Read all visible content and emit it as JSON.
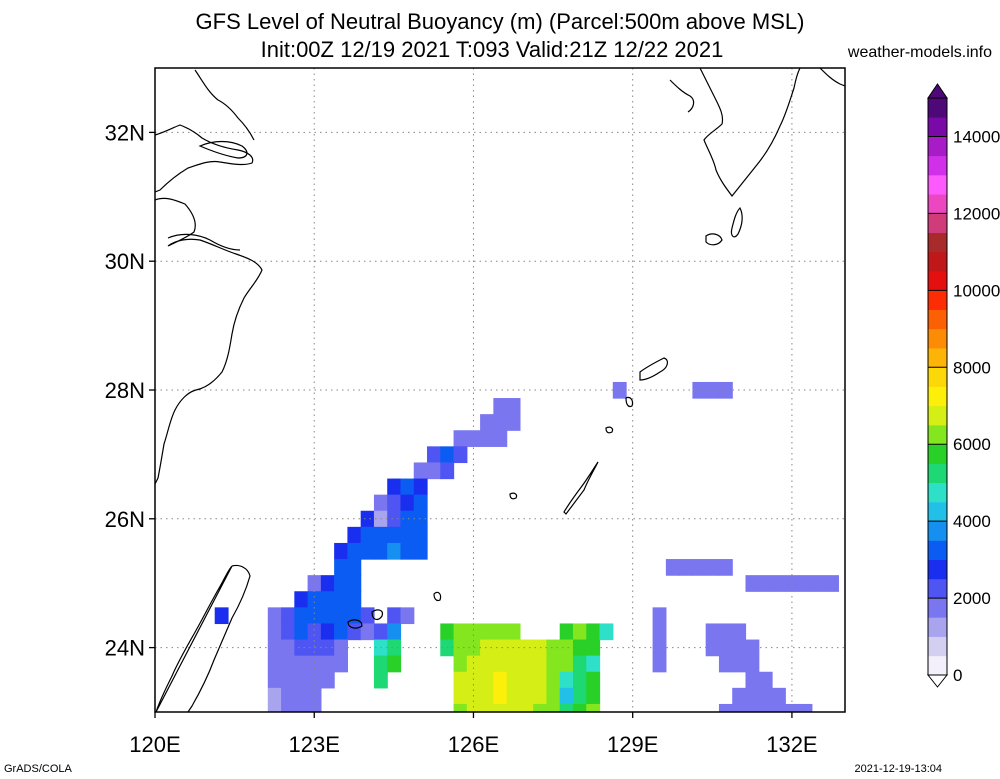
{
  "title": {
    "line1": "GFS Level of Neutral Buoyancy (m) (Parcel:500m above MSL)",
    "line2": "Init:00Z 12/19 2021 T:093 Valid:21Z 12/22 2021"
  },
  "source": "weather-models.info",
  "footer": {
    "left": "GrADS/COLA",
    "right": "2021-12-19-13:04"
  },
  "map": {
    "lon_range": [
      120,
      133
    ],
    "lat_range": [
      23,
      33
    ],
    "lon_ticks": [
      {
        "value": 120,
        "label": "120E"
      },
      {
        "value": 123,
        "label": "123E"
      },
      {
        "value": 126,
        "label": "126E"
      },
      {
        "value": 129,
        "label": "129E"
      },
      {
        "value": 132,
        "label": "132E"
      }
    ],
    "lat_ticks": [
      {
        "value": 24,
        "label": "24N"
      },
      {
        "value": 26,
        "label": "26N"
      },
      {
        "value": 28,
        "label": "28N"
      },
      {
        "value": 30,
        "label": "30N"
      },
      {
        "value": 32,
        "label": "32N"
      }
    ],
    "gridlines": true
  },
  "colorbar": {
    "min": 0,
    "max": 15000,
    "ticks": [
      {
        "value": 0,
        "label": "0"
      },
      {
        "value": 2000,
        "label": "2000"
      },
      {
        "value": 4000,
        "label": "4000"
      },
      {
        "value": 6000,
        "label": "6000"
      },
      {
        "value": 8000,
        "label": "8000"
      },
      {
        "value": 10000,
        "label": "10000"
      },
      {
        "value": 12000,
        "label": "12000"
      },
      {
        "value": 14000,
        "label": "14000"
      }
    ],
    "colors": [
      "#f4f0fb",
      "#d2cff1",
      "#a8a4ee",
      "#7a76f0",
      "#4f55f2",
      "#1a2ef0",
      "#0b5cf2",
      "#1690f0",
      "#22c0e8",
      "#2ee0c8",
      "#1ed874",
      "#29d028",
      "#84e61e",
      "#d4ee16",
      "#fcf00a",
      "#fcd808",
      "#fcb406",
      "#fc8c06",
      "#fc6004",
      "#fc2c04",
      "#e41010",
      "#c01818",
      "#a82a2a",
      "#d03c7a",
      "#ec46c0",
      "#fc5afc",
      "#d030e8",
      "#a81cc8",
      "#7a0aa8",
      "#4e0878"
    ]
  },
  "chart_data": {
    "type": "heatmap",
    "title": "GFS Level of Neutral Buoyancy (m) (Parcel:500m above MSL)",
    "xlabel": "",
    "ylabel": "",
    "xlim": [
      120,
      133
    ],
    "ylim": [
      23,
      33
    ],
    "units": "m",
    "cells": [
      [
        126.5,
        27.75,
        1700
      ],
      [
        126.75,
        27.75,
        1800
      ],
      [
        126.25,
        27.5,
        1600
      ],
      [
        126.5,
        27.5,
        1700
      ],
      [
        126.75,
        27.5,
        1800
      ],
      [
        125.75,
        27.25,
        1900
      ],
      [
        126.0,
        27.25,
        1800
      ],
      [
        126.25,
        27.25,
        1700
      ],
      [
        126.5,
        27.25,
        1600
      ],
      [
        125.25,
        27.0,
        2300
      ],
      [
        125.5,
        27.0,
        3000
      ],
      [
        125.75,
        27.0,
        2000
      ],
      [
        125.0,
        26.75,
        1800
      ],
      [
        125.25,
        26.75,
        1900
      ],
      [
        125.5,
        26.75,
        2200
      ],
      [
        124.5,
        26.5,
        2500
      ],
      [
        124.75,
        26.5,
        3200
      ],
      [
        125.0,
        26.5,
        2600
      ],
      [
        124.25,
        26.25,
        1800
      ],
      [
        124.5,
        26.25,
        2200
      ],
      [
        124.75,
        26.25,
        2900
      ],
      [
        125.0,
        26.25,
        3000
      ],
      [
        124.0,
        26.0,
        2500
      ],
      [
        124.25,
        26.0,
        1400
      ],
      [
        124.5,
        26.0,
        2100
      ],
      [
        124.75,
        26.0,
        3100
      ],
      [
        125.0,
        26.0,
        3300
      ],
      [
        123.75,
        25.75,
        2700
      ],
      [
        124.0,
        25.75,
        3000
      ],
      [
        124.25,
        25.75,
        3100
      ],
      [
        124.5,
        25.75,
        3300
      ],
      [
        124.75,
        25.75,
        3300
      ],
      [
        125.0,
        25.75,
        3400
      ],
      [
        123.5,
        25.5,
        2700
      ],
      [
        123.75,
        25.5,
        3000
      ],
      [
        124.0,
        25.5,
        3200
      ],
      [
        124.25,
        25.5,
        3400
      ],
      [
        124.5,
        25.5,
        3500
      ],
      [
        124.75,
        25.5,
        3400
      ],
      [
        125.0,
        25.5,
        3400
      ],
      [
        123.5,
        25.25,
        3000
      ],
      [
        123.75,
        25.25,
        3300
      ],
      [
        123.0,
        25.0,
        1500
      ],
      [
        123.25,
        25.0,
        2600
      ],
      [
        123.5,
        25.0,
        3100
      ],
      [
        123.75,
        25.0,
        3400
      ],
      [
        122.75,
        24.75,
        2800
      ],
      [
        123.0,
        24.75,
        3000
      ],
      [
        123.25,
        24.75,
        3200
      ],
      [
        123.5,
        24.75,
        3400
      ],
      [
        123.75,
        24.75,
        3400
      ],
      [
        122.25,
        24.5,
        1800
      ],
      [
        122.5,
        24.5,
        2400
      ],
      [
        122.75,
        24.5,
        3300
      ],
      [
        123.0,
        24.5,
        3100
      ],
      [
        123.25,
        24.5,
        3000
      ],
      [
        123.5,
        24.5,
        3300
      ],
      [
        123.75,
        24.5,
        3200
      ],
      [
        124.0,
        24.5,
        2300
      ],
      [
        124.5,
        24.5,
        2100
      ],
      [
        124.75,
        24.5,
        1800
      ],
      [
        121.25,
        24.5,
        2700
      ],
      [
        122.25,
        24.25,
        1700
      ],
      [
        122.5,
        24.25,
        2000
      ],
      [
        122.75,
        24.25,
        3000
      ],
      [
        123.0,
        24.25,
        2300
      ],
      [
        123.25,
        24.25,
        2500
      ],
      [
        123.5,
        24.25,
        3100
      ],
      [
        123.75,
        24.25,
        2400
      ],
      [
        124.0,
        24.25,
        1900
      ],
      [
        124.25,
        24.25,
        2000
      ],
      [
        124.5,
        24.25,
        3800
      ],
      [
        125.5,
        24.25,
        5600
      ],
      [
        125.75,
        24.25,
        6100
      ],
      [
        126.0,
        24.25,
        6300
      ],
      [
        126.25,
        24.25,
        6400
      ],
      [
        126.5,
        24.25,
        6400
      ],
      [
        126.75,
        24.25,
        6300
      ],
      [
        127.75,
        24.25,
        5700
      ],
      [
        128.0,
        24.25,
        6000
      ],
      [
        128.25,
        24.25,
        5800
      ],
      [
        128.5,
        24.25,
        4700
      ],
      [
        122.25,
        24.0,
        1600
      ],
      [
        122.5,
        24.0,
        1900
      ],
      [
        122.75,
        24.0,
        2100
      ],
      [
        123.0,
        24.0,
        2000
      ],
      [
        123.25,
        24.0,
        2000
      ],
      [
        123.5,
        24.0,
        1700
      ],
      [
        124.25,
        24.0,
        4500
      ],
      [
        124.5,
        24.0,
        5000
      ],
      [
        125.5,
        24.0,
        5300
      ],
      [
        125.75,
        24.0,
        6200
      ],
      [
        126.0,
        24.0,
        6400
      ],
      [
        126.25,
        24.0,
        6500
      ],
      [
        126.5,
        24.0,
        6600
      ],
      [
        126.75,
        24.0,
        6600
      ],
      [
        127.0,
        24.0,
        6600
      ],
      [
        127.25,
        24.0,
        6500
      ],
      [
        127.5,
        24.0,
        6400
      ],
      [
        127.75,
        24.0,
        6200
      ],
      [
        128.0,
        24.0,
        5900
      ],
      [
        128.25,
        24.0,
        5800
      ],
      [
        122.25,
        23.75,
        1500
      ],
      [
        122.5,
        23.75,
        1800
      ],
      [
        122.75,
        23.75,
        1900
      ],
      [
        123.0,
        23.75,
        1900
      ],
      [
        123.25,
        23.75,
        1700
      ],
      [
        123.5,
        23.75,
        1500
      ],
      [
        124.25,
        23.75,
        5100
      ],
      [
        124.5,
        23.75,
        5700
      ],
      [
        125.75,
        23.75,
        6400
      ],
      [
        126.0,
        23.75,
        6600
      ],
      [
        126.25,
        23.75,
        6700
      ],
      [
        126.5,
        23.75,
        6800
      ],
      [
        126.75,
        23.75,
        6800
      ],
      [
        127.0,
        23.75,
        6700
      ],
      [
        127.25,
        23.75,
        6600
      ],
      [
        127.5,
        23.75,
        6400
      ],
      [
        127.75,
        23.75,
        6000
      ],
      [
        128.0,
        23.75,
        5000
      ],
      [
        128.25,
        23.75,
        4900
      ],
      [
        122.25,
        23.5,
        1500
      ],
      [
        122.5,
        23.5,
        1700
      ],
      [
        122.75,
        23.5,
        1800
      ],
      [
        123.0,
        23.5,
        1800
      ],
      [
        123.25,
        23.5,
        1600
      ],
      [
        124.25,
        23.5,
        5400
      ],
      [
        125.75,
        23.5,
        6500
      ],
      [
        126.0,
        23.5,
        6700
      ],
      [
        126.25,
        23.5,
        6900
      ],
      [
        126.5,
        23.5,
        7000
      ],
      [
        126.75,
        23.5,
        6900
      ],
      [
        127.0,
        23.5,
        6800
      ],
      [
        127.25,
        23.5,
        6700
      ],
      [
        127.5,
        23.5,
        6300
      ],
      [
        127.75,
        23.5,
        4500
      ],
      [
        128.0,
        23.5,
        5100
      ],
      [
        128.25,
        23.5,
        5500
      ],
      [
        122.25,
        23.25,
        1400
      ],
      [
        122.5,
        23.25,
        1600
      ],
      [
        122.75,
        23.25,
        1700
      ],
      [
        123.0,
        23.25,
        1600
      ],
      [
        125.75,
        23.25,
        6500
      ],
      [
        126.0,
        23.25,
        6700
      ],
      [
        126.25,
        23.25,
        6900
      ],
      [
        126.5,
        23.25,
        7000
      ],
      [
        126.75,
        23.25,
        6900
      ],
      [
        127.0,
        23.25,
        6800
      ],
      [
        127.25,
        23.25,
        6600
      ],
      [
        127.5,
        23.25,
        6000
      ],
      [
        127.75,
        23.25,
        4200
      ],
      [
        128.0,
        23.25,
        5400
      ],
      [
        128.25,
        23.25,
        5900
      ],
      [
        122.25,
        23.0,
        1400
      ],
      [
        122.5,
        23.0,
        1500
      ],
      [
        122.75,
        23.0,
        1600
      ],
      [
        123.0,
        23.0,
        1600
      ],
      [
        125.75,
        23.0,
        6400
      ],
      [
        126.0,
        23.0,
        6600
      ],
      [
        126.25,
        23.0,
        6800
      ],
      [
        126.5,
        23.0,
        6800
      ],
      [
        126.75,
        23.0,
        6700
      ],
      [
        127.0,
        23.0,
        6600
      ],
      [
        127.25,
        23.0,
        6400
      ],
      [
        127.5,
        23.0,
        6000
      ],
      [
        127.75,
        23.0,
        5300
      ],
      [
        128.0,
        23.0,
        5900
      ],
      [
        128.25,
        23.0,
        6200
      ],
      [
        128.75,
        28.0,
        1700
      ],
      [
        130.25,
        28.0,
        1800
      ],
      [
        130.5,
        28.0,
        1600
      ],
      [
        130.75,
        28.0,
        1700
      ],
      [
        129.75,
        25.25,
        1700
      ],
      [
        130.0,
        25.25,
        1600
      ],
      [
        130.25,
        25.25,
        1700
      ],
      [
        130.5,
        25.25,
        1800
      ],
      [
        130.75,
        25.25,
        1700
      ],
      [
        131.25,
        25.0,
        1900
      ],
      [
        131.5,
        25.0,
        1900
      ],
      [
        131.75,
        25.0,
        1800
      ],
      [
        132.0,
        25.0,
        1800
      ],
      [
        132.25,
        25.0,
        1700
      ],
      [
        132.5,
        25.0,
        1900
      ],
      [
        132.75,
        25.0,
        1900
      ],
      [
        129.5,
        24.5,
        1700
      ],
      [
        129.5,
        24.25,
        1700
      ],
      [
        129.5,
        24.0,
        1600
      ],
      [
        129.5,
        23.75,
        1600
      ],
      [
        130.5,
        24.25,
        1600
      ],
      [
        130.75,
        24.25,
        1800
      ],
      [
        131.0,
        24.25,
        1700
      ],
      [
        130.5,
        24.0,
        1600
      ],
      [
        130.75,
        24.0,
        1700
      ],
      [
        131.0,
        24.0,
        1700
      ],
      [
        131.25,
        24.0,
        1700
      ],
      [
        130.75,
        23.75,
        1700
      ],
      [
        131.0,
        23.75,
        1600
      ],
      [
        131.25,
        23.75,
        1700
      ],
      [
        131.25,
        23.5,
        1800
      ],
      [
        131.5,
        23.5,
        1800
      ],
      [
        131.0,
        23.25,
        1500
      ],
      [
        131.25,
        23.25,
        1600
      ],
      [
        131.5,
        23.25,
        1800
      ],
      [
        131.75,
        23.25,
        1700
      ],
      [
        130.75,
        23.0,
        1600
      ],
      [
        131.0,
        23.0,
        1700
      ],
      [
        131.25,
        23.0,
        1800
      ],
      [
        131.5,
        23.0,
        1600
      ],
      [
        131.75,
        23.0,
        1700
      ],
      [
        132.0,
        23.0,
        1600
      ],
      [
        132.25,
        23.0,
        1700
      ]
    ]
  }
}
